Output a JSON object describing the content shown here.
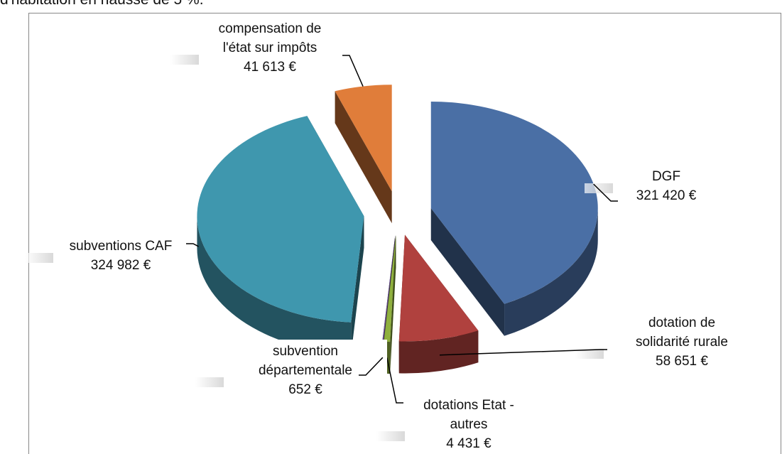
{
  "header": {
    "text": "d'habitation en hausse de 5 %."
  },
  "chart_data": {
    "type": "pie3d",
    "categories": [
      "DGF",
      "dotation de solidarité rurale",
      "dotations Etat - autres",
      "subvention départementale",
      "subventions CAF",
      "compensation de l'état sur impôts"
    ],
    "values": [
      321420,
      58651,
      4431,
      652,
      324982,
      41613
    ],
    "value_labels": [
      "321 420 €",
      "58 651 €",
      "4 431 €",
      "652 €",
      "324 982 €",
      "41 613 €"
    ],
    "colors": [
      "#4a6fa5",
      "#b0413e",
      "#8fb03e",
      "#7b5fa0",
      "#3f97ae",
      "#e07d3a"
    ]
  }
}
